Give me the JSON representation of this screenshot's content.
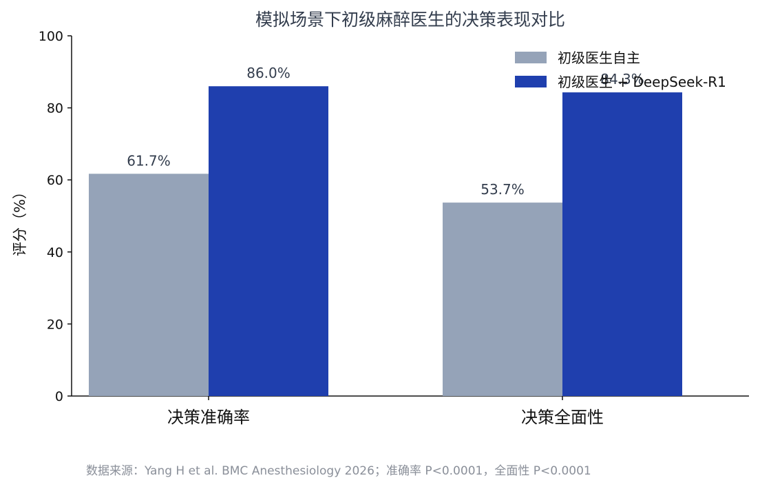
{
  "chart_data": {
    "type": "bar",
    "title": "模拟场景下初级麻醉医生的决策表现对比",
    "ylabel": "评分（%）",
    "xlabel": "",
    "ylim": [
      0,
      100
    ],
    "yticks": [
      0,
      20,
      40,
      60,
      80,
      100
    ],
    "grid": false,
    "legend_position": "top-right",
    "categories": [
      "决策准确率",
      "决策全面性"
    ],
    "series": [
      {
        "name": "初级医生自主",
        "color": "#95a3b8",
        "values": [
          61.7,
          53.7
        ],
        "labels": [
          "61.7%",
          "53.7%"
        ]
      },
      {
        "name": "初级医生 + DeepSeek-R1",
        "color": "#1f3fae",
        "values": [
          86.0,
          84.3
        ],
        "labels": [
          "86.0%",
          "84.3%"
        ]
      }
    ]
  },
  "source_note": "数据来源：Yang H et al. BMC Anesthesiology 2026；准确率 P<0.0001，全面性 P<0.0001"
}
